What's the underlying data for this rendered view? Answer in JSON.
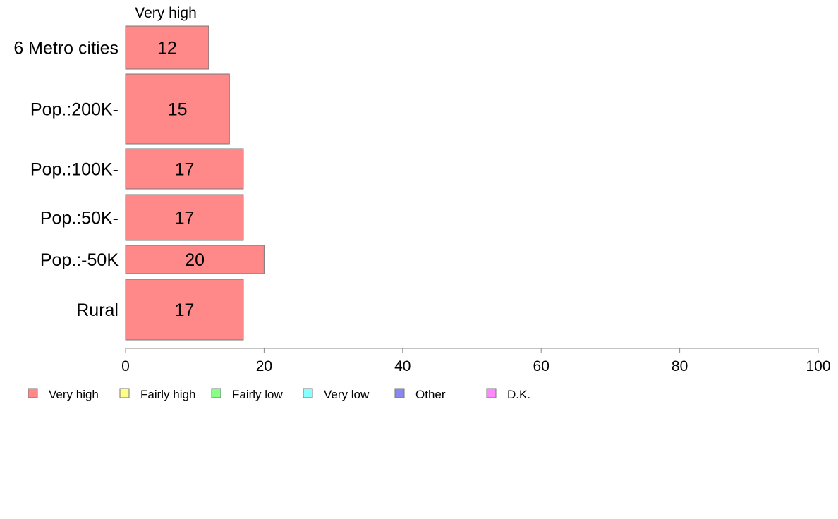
{
  "chart_data": {
    "type": "bar",
    "orientation": "horizontal",
    "stacked": true,
    "top_series_label": "Very high",
    "categories": [
      "6 Metro cities",
      "Pop.:200K-",
      "Pop.:100K-",
      "Pop.:50K-",
      "Pop.:-50K",
      "Rural"
    ],
    "series": [
      {
        "name": "Very high",
        "values": [
          12,
          15,
          17,
          17,
          20,
          17
        ],
        "color": "#ff8888"
      }
    ],
    "value_labels": [
      "12",
      "15",
      "17",
      "17",
      "20",
      "17"
    ],
    "xlim": [
      0,
      100
    ],
    "xticks": [
      0,
      20,
      40,
      60,
      80,
      100
    ],
    "grid": false,
    "legend_position": "bottom",
    "legend": [
      {
        "label": "Very high",
        "color": "#ff8888"
      },
      {
        "label": "Fairly high",
        "color": "#ffff88"
      },
      {
        "label": "Fairly low",
        "color": "#88ff88"
      },
      {
        "label": "Very low",
        "color": "#88ffff"
      },
      {
        "label": "Other",
        "color": "#8888ee"
      },
      {
        "label": "D.K.",
        "color": "#ff88ff"
      }
    ]
  }
}
